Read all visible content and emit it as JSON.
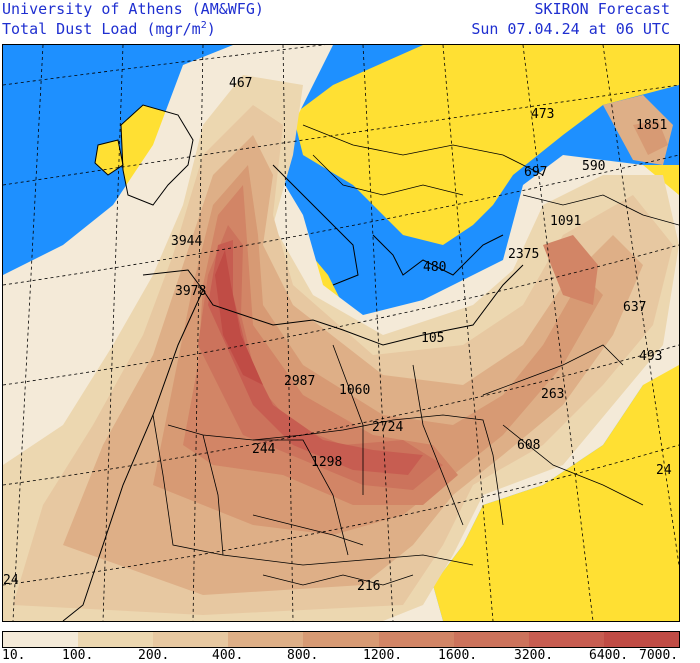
{
  "header": {
    "org": "University of Athens (AM&WFG)",
    "product_prefix": "Total Dust Load (mgr/m",
    "product_sup": "2",
    "product_suffix": ")",
    "brand": "SKIRON Forecast",
    "valid": "Sun 07.04.24 at 06 UTC"
  },
  "colors": {
    "sea": "#1e90ff",
    "land_nodata": "#ffe033",
    "accent_text": "#1f2fd0",
    "borders": "#000000"
  },
  "legend": {
    "labels": [
      "10.",
      "100.",
      "200.",
      "400.",
      "800.",
      "1200.",
      "1600.",
      "3200.",
      "6400.",
      "7000."
    ],
    "colors": [
      "#f4ead8",
      "#ecd7b0",
      "#e7c8a1",
      "#deaf87",
      "#d79a74",
      "#d28566",
      "#cc735c",
      "#c75d51",
      "#c04c45"
    ]
  },
  "values": [
    {
      "text": "467"
    },
    {
      "text": "473"
    },
    {
      "text": "1851"
    },
    {
      "text": "697"
    },
    {
      "text": "590"
    },
    {
      "text": "1091"
    },
    {
      "text": "3944"
    },
    {
      "text": "2375"
    },
    {
      "text": "480"
    },
    {
      "text": "3978"
    },
    {
      "text": "637"
    },
    {
      "text": "105"
    },
    {
      "text": "493"
    },
    {
      "text": "2987"
    },
    {
      "text": "1060"
    },
    {
      "text": "263"
    },
    {
      "text": "2724"
    },
    {
      "text": "244"
    },
    {
      "text": "608"
    },
    {
      "text": "1298"
    },
    {
      "text": "24"
    },
    {
      "text": "24"
    },
    {
      "text": "216"
    }
  ]
}
